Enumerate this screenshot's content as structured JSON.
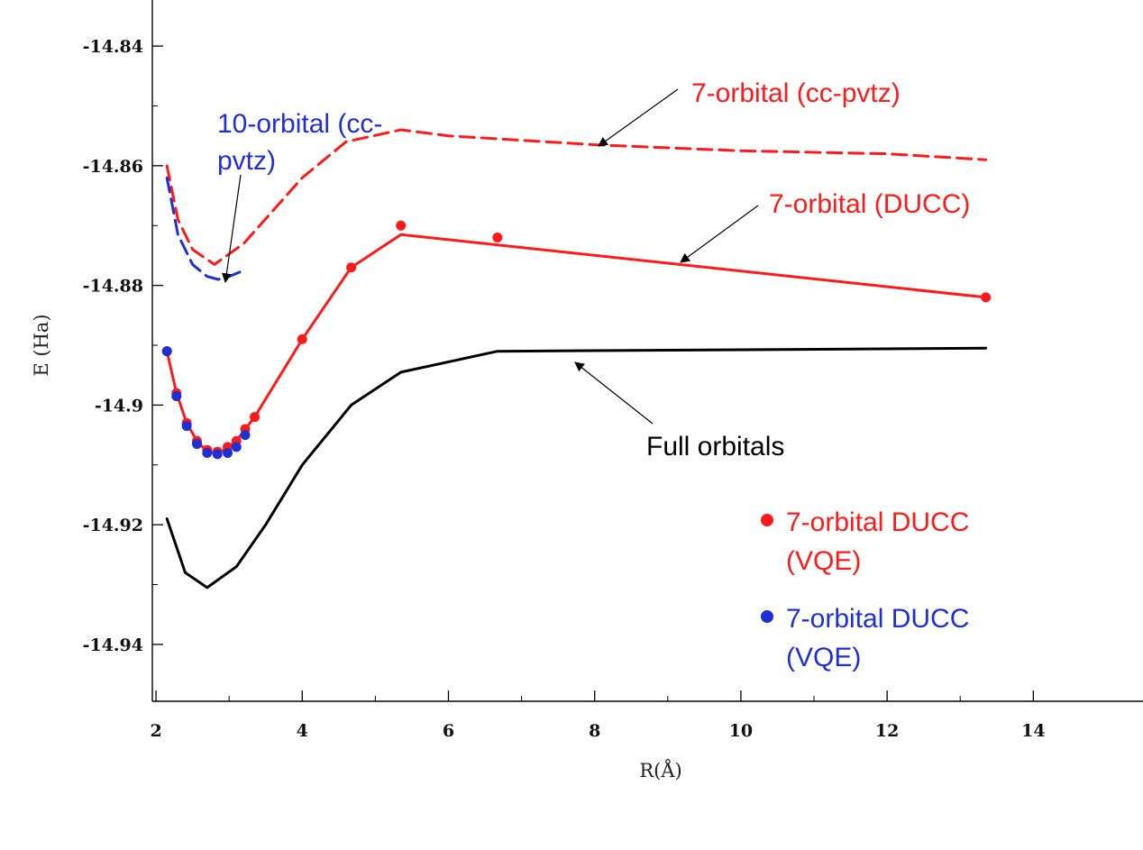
{
  "chart_data": {
    "type": "line",
    "xlabel": "R(Å)",
    "ylabel": "E (Ha)",
    "xlim": [
      1.95,
      15.5
    ],
    "ylim": [
      -14.9495,
      -14.8323
    ],
    "x_ticks": [
      2,
      4,
      6,
      8,
      10,
      12,
      14
    ],
    "x_tick_labels": [
      "2",
      "4",
      "6",
      "8",
      "10",
      "12",
      "14"
    ],
    "y_ticks": [
      -14.84,
      -14.86,
      -14.88,
      -14.9,
      -14.92,
      -14.94
    ],
    "y_tick_labels": [
      "-14.84",
      "-14.86",
      "-14.88",
      "-14.9",
      "-14.92",
      "-14.94"
    ],
    "grid": false,
    "colors": {
      "red": "#ff1a1a",
      "blue": "#1f2fd6",
      "black": "#000000"
    },
    "series": [
      {
        "name": "7-orbital (cc-pvtz)",
        "style": "dashed",
        "color": "#ff1a1a",
        "x": [
          2.15,
          2.3,
          2.5,
          2.8,
          3.2,
          3.6,
          4.0,
          4.6,
          5.35,
          6.0,
          8.0,
          10.0,
          12.0,
          13.35
        ],
        "y": [
          -14.86,
          -14.869,
          -14.874,
          -14.8765,
          -14.873,
          -14.8675,
          -14.862,
          -14.856,
          -14.854,
          -14.855,
          -14.8565,
          -14.8575,
          -14.858,
          -14.859
        ]
      },
      {
        "name": "10-orbital (cc-pvtz)",
        "style": "dashed",
        "color": "#1f2fd6",
        "x": [
          2.15,
          2.3,
          2.5,
          2.7,
          2.85,
          3.0,
          3.2
        ],
        "y": [
          -14.862,
          -14.8715,
          -14.8765,
          -14.8785,
          -14.879,
          -14.8785,
          -14.8775
        ]
      },
      {
        "name": "7-orbital (DUCC)",
        "style": "solid",
        "color": "#ff1a1a",
        "x": [
          2.15,
          2.28,
          2.42,
          2.56,
          2.7,
          2.84,
          2.98,
          3.1,
          3.22,
          3.35,
          4.0,
          4.67,
          5.35,
          13.35
        ],
        "y": [
          -14.891,
          -14.898,
          -14.903,
          -14.906,
          -14.9078,
          -14.908,
          -14.9072,
          -14.906,
          -14.904,
          -14.902,
          -14.889,
          -14.877,
          -14.8715,
          -14.882
        ]
      },
      {
        "name": "Full orbitals",
        "style": "solid",
        "color": "#000000",
        "x": [
          2.15,
          2.4,
          2.7,
          3.1,
          3.5,
          4.0,
          4.67,
          5.35,
          6.67,
          13.35
        ],
        "y": [
          -14.919,
          -14.928,
          -14.9305,
          -14.927,
          -14.92,
          -14.91,
          -14.9,
          -14.8945,
          -14.891,
          -14.8905
        ]
      },
      {
        "name": "7-orbital DUCC (VQE)",
        "style": "markers",
        "color": "#ff1a1a",
        "x": [
          2.15,
          2.28,
          2.42,
          2.56,
          2.7,
          2.84,
          2.98,
          3.1,
          3.22,
          3.35,
          4.0,
          4.67,
          5.35,
          6.67,
          13.35
        ],
        "y": [
          -14.891,
          -14.898,
          -14.903,
          -14.906,
          -14.9075,
          -14.9078,
          -14.907,
          -14.906,
          -14.904,
          -14.902,
          -14.889,
          -14.877,
          -14.87,
          -14.872,
          -14.882
        ]
      },
      {
        "name": "7-orbital DUCC (VQE)",
        "style": "markers",
        "color": "#1f2fd6",
        "x": [
          2.15,
          2.28,
          2.42,
          2.56,
          2.7,
          2.84,
          2.98,
          3.1,
          3.22
        ],
        "y": [
          -14.891,
          -14.8985,
          -14.9035,
          -14.9065,
          -14.908,
          -14.9082,
          -14.908,
          -14.907,
          -14.905
        ]
      }
    ],
    "annotations": [
      {
        "text": "7-orbital (cc-pvtz)",
        "color": "#ff1a1a"
      },
      {
        "text": "10-orbital (cc-",
        "color": "#1f2fd6"
      },
      {
        "text": "pvtz)",
        "color": "#1f2fd6"
      },
      {
        "text": "7-orbital (DUCC)",
        "color": "#ff1a1a"
      },
      {
        "text": "Full orbitals",
        "color": "#000000"
      }
    ],
    "legend": {
      "placement": "bottom-right",
      "entries": [
        {
          "line1": "7-orbital DUCC",
          "line2": "(VQE)",
          "color": "#ff1a1a"
        },
        {
          "line1": "7-orbital DUCC",
          "line2": "(VQE)",
          "color": "#1f2fd6"
        }
      ]
    }
  }
}
